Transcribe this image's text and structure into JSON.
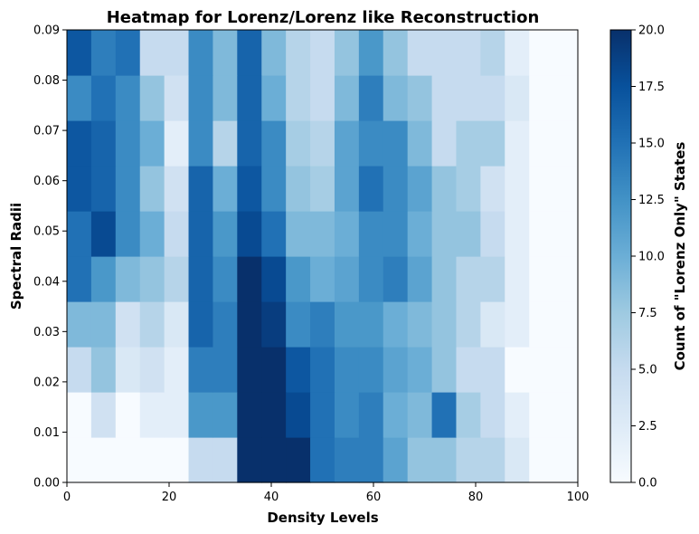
{
  "chart_data": {
    "type": "heatmap",
    "title": "Heatmap for Lorenz/Lorenz like Reconstruction",
    "xlabel": "Density Levels",
    "ylabel": "Spectral Radii",
    "colorbar_label": "Count of \"Lorenz Only\" States",
    "xlim": [
      0,
      100
    ],
    "ylim": [
      0,
      0.09
    ],
    "clim": [
      0,
      20
    ],
    "colormap": "Blues",
    "x_ticks": [
      "0",
      "20",
      "40",
      "60",
      "80",
      "100"
    ],
    "y_ticks": [
      "0.00",
      "0.01",
      "0.02",
      "0.03",
      "0.04",
      "0.05",
      "0.06",
      "0.07",
      "0.08",
      "0.09"
    ],
    "colorbar_ticks": [
      "0.0",
      "2.5",
      "5.0",
      "7.5",
      "10.0",
      "12.5",
      "15.0",
      "17.5",
      "20.0"
    ],
    "x_bin_edges": [
      0,
      4.76,
      9.52,
      14.29,
      19.05,
      23.81,
      28.57,
      33.33,
      38.1,
      42.86,
      47.62,
      52.38,
      57.14,
      61.9,
      66.67,
      71.43,
      76.19,
      80.95,
      85.71,
      90.48,
      95.24,
      100
    ],
    "y_bin_edges": [
      0,
      0.009,
      0.018,
      0.027,
      0.036,
      0.045,
      0.054,
      0.063,
      0.072,
      0.081,
      0.09
    ],
    "values": [
      [
        0,
        0,
        0,
        0,
        0,
        5,
        5,
        20,
        20,
        20,
        15,
        14,
        14,
        11,
        8,
        8,
        6,
        6,
        3,
        0,
        0
      ],
      [
        0,
        4,
        0,
        2,
        2,
        12,
        12,
        20,
        20,
        18,
        15,
        13,
        14,
        10,
        9,
        15,
        7,
        5,
        2,
        0,
        0
      ],
      [
        5,
        8,
        3,
        4,
        2,
        14,
        14,
        20,
        20,
        17,
        15,
        13,
        13,
        11,
        10,
        8,
        5,
        5,
        0,
        0,
        0
      ],
      [
        9,
        9,
        4,
        6,
        3,
        16,
        14,
        20,
        19,
        13,
        14,
        12,
        12,
        10,
        9,
        8,
        6,
        3,
        2,
        0,
        0
      ],
      [
        15,
        12,
        9,
        8,
        6,
        16,
        13,
        20,
        18,
        12,
        10,
        11,
        13,
        14,
        11,
        8,
        6,
        6,
        2,
        0,
        0
      ],
      [
        15,
        18,
        13,
        10,
        5,
        16,
        12,
        18,
        15,
        9,
        9,
        10,
        13,
        13,
        10,
        8,
        8,
        5,
        2,
        0,
        0
      ],
      [
        17,
        16,
        13,
        8,
        4,
        16,
        10,
        17,
        13,
        8,
        7,
        11,
        15,
        13,
        11,
        8,
        7,
        4,
        2,
        0,
        0
      ],
      [
        17,
        16,
        13,
        10,
        2,
        13,
        6,
        16,
        13,
        7,
        6,
        11,
        13,
        13,
        9,
        5,
        7,
        7,
        2,
        0,
        0
      ],
      [
        13,
        15,
        13,
        8,
        4,
        13,
        9,
        16,
        10,
        6,
        5,
        9,
        14,
        9,
        8,
        5,
        5,
        5,
        3,
        0,
        0
      ],
      [
        17,
        14,
        15,
        5,
        5,
        13,
        9,
        16,
        9,
        6,
        5,
        8,
        12,
        8,
        5,
        5,
        5,
        6,
        2,
        0,
        0
      ]
    ]
  }
}
